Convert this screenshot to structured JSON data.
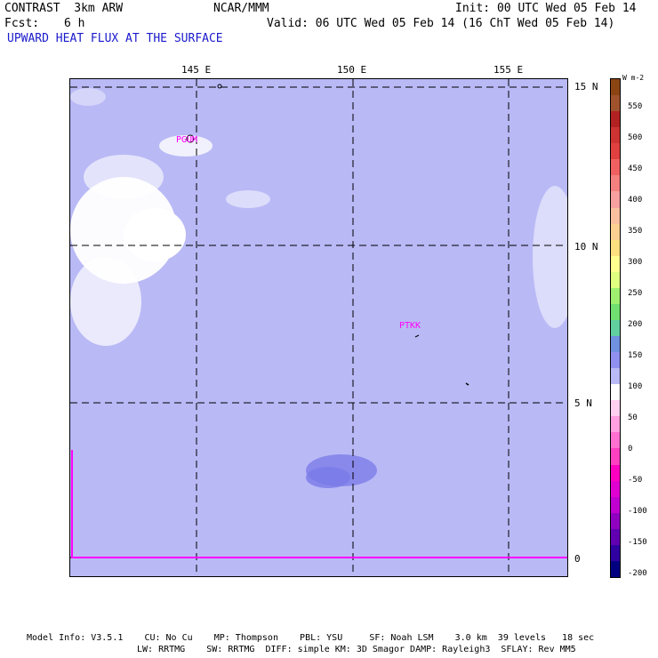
{
  "header": {
    "model": "CONTRAST  3km ARW",
    "center": "NCAR/MMM",
    "init": "Init: 00 UTC Wed 05 Feb 14",
    "fcst_label": "Fcst:",
    "fcst_value": "6 h",
    "valid": "Valid: 06 UTC Wed 05 Feb 14 (16 ChT Wed 05 Feb 14)",
    "field": "UPWARD HEAT FLUX AT THE SURFACE"
  },
  "map": {
    "lon_labels": [
      "145 E",
      "150 E",
      "155 E"
    ],
    "lat_labels": [
      "15 N",
      "10 N",
      "5 N",
      "0"
    ],
    "stations": [
      "PGUM",
      "PTKK"
    ],
    "ocean_color": "#b9b9f6"
  },
  "colorbar": {
    "unit": "W m-2",
    "labels": [
      "550",
      "500",
      "450",
      "400",
      "350",
      "300",
      "250",
      "200",
      "150",
      "100",
      "50",
      "0",
      "-50",
      "-100",
      "-150",
      "-200"
    ],
    "colors": [
      "#8b4513",
      "#a0522d",
      "#b22222",
      "#cd3333",
      "#e04040",
      "#f06060",
      "#f48080",
      "#f7a0a0",
      "#f9c0a0",
      "#fbd090",
      "#fde080",
      "#ffff90",
      "#e0ff80",
      "#a0f070",
      "#70e070",
      "#60d0a0",
      "#7090e0",
      "#9090f0",
      "#b9b9f6",
      "#ffffff",
      "#ffd0f0",
      "#ffa0e0",
      "#ff70d0",
      "#ff40c0",
      "#ff00c0",
      "#e000d0",
      "#c000d0",
      "#9000c0",
      "#6000b0",
      "#3000a0",
      "#000080"
    ]
  },
  "footer": {
    "line1": "Model Info: V3.5.1    CU: No Cu    MP: Thompson    PBL: YSU     SF: Noah LSM    3.0 km  39 levels   18 sec",
    "line2": "LW: RRTMG    SW: RRTMG  DIFF: simple KM: 3D Smagor DAMP: Rayleigh3  SFLAY: Rev MM5"
  }
}
